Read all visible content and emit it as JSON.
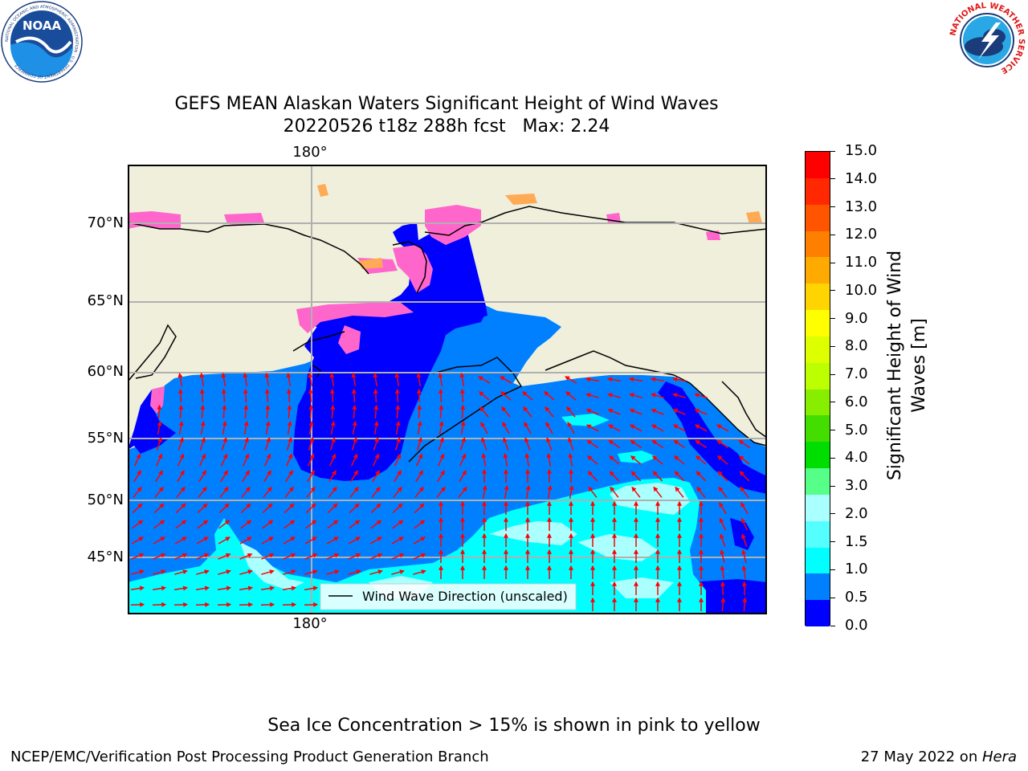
{
  "title": {
    "line1": "GEFS MEAN Alaskan Waters Significant Height of Wind Waves",
    "line2": "20220526 t18z 288h fcst   Max: 2.24"
  },
  "logos": {
    "noaa_text": "NOAA",
    "noaa_ring": "NATIONAL OCEANIC AND ATMOSPHERIC ADMINISTRATION · U.S. DEPARTMENT OF COMMERCE",
    "nws_ring": "NATIONAL WEATHER SERVICE"
  },
  "map": {
    "lat_labels": [
      "70°N",
      "65°N",
      "60°N",
      "55°N",
      "50°N",
      "45°N"
    ],
    "lon_label_top": "180°",
    "lon_label_bottom": "180°",
    "legend_label": "Wind Wave Direction (unscaled)",
    "colors": {
      "land": "#efefdc",
      "ocean": "#0080ff",
      "deep": "#0000ff",
      "cyan": "#00ffff",
      "lightcyan": "#aaffff",
      "arrow": "#ff0000",
      "grid": "#b0b0b0",
      "ice_pink": "#ff66cc",
      "ice_orange": "#ffaa55"
    }
  },
  "colorbar": {
    "title_line1": "Significant Height of Wind",
    "title_line2": "Waves [m]",
    "ticks": [
      "15.0",
      "14.0",
      "13.0",
      "12.0",
      "11.0",
      "10.0",
      "9.0",
      "8.0",
      "7.0",
      "6.0",
      "5.0",
      "4.0",
      "3.0",
      "2.0",
      "1.5",
      "1.0",
      "0.5",
      "0.0"
    ],
    "colors_top_to_bottom": [
      "#ff0000",
      "#ff2800",
      "#ff5500",
      "#ff7f00",
      "#ffaa00",
      "#ffd400",
      "#ffff00",
      "#ddff00",
      "#bbff00",
      "#88ee00",
      "#44dd00",
      "#00dd00",
      "#55ff88",
      "#aaffff",
      "#55ffff",
      "#00ffff",
      "#0080ff",
      "#0000ff"
    ]
  },
  "notes": {
    "ice": "Sea Ice Concentration > 15% is shown in pink to yellow",
    "footer_left": "NCEP/EMC/Verification Post Processing Product Generation Branch",
    "footer_right_prefix": "27 May 2022 on ",
    "footer_right_host": "Hera"
  }
}
